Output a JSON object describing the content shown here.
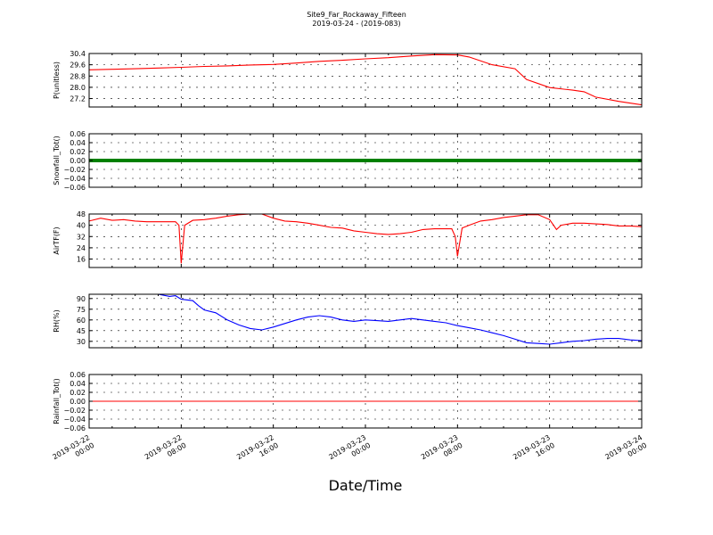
{
  "figure": {
    "title": "Site9_Far_Rockaway_Fifteen",
    "subtitle": "2019-03-24 - (2019-083)",
    "xlabel": "Date/Time"
  },
  "x_ticks": [
    {
      "line1": "2019-03-22",
      "line2": "00:00"
    },
    {
      "line1": "2019-03-22",
      "line2": "08:00"
    },
    {
      "line1": "2019-03-22",
      "line2": "16:00"
    },
    {
      "line1": "2019-03-23",
      "line2": "00:00"
    },
    {
      "line1": "2019-03-23",
      "line2": "08:00"
    },
    {
      "line1": "2019-03-23",
      "line2": "16:00"
    },
    {
      "line1": "2019-03-24",
      "line2": "00:00"
    }
  ],
  "chart_data": [
    {
      "type": "line",
      "ylabel": "P(unitless)",
      "color": "#ff0000",
      "ylim": [
        26.6,
        30.4
      ],
      "yticks": [
        27.2,
        28.0,
        28.8,
        29.6,
        30.4
      ],
      "ytick_labels": [
        "27.2",
        "28.0",
        "28.8",
        "29.6",
        "30.4"
      ],
      "grid": true,
      "series": [
        {
          "values": [
            [
              0,
              29.24
            ],
            [
              2,
              29.28
            ],
            [
              4,
              29.32
            ],
            [
              6,
              29.37
            ],
            [
              8,
              29.42
            ],
            [
              10,
              29.48
            ],
            [
              12,
              29.52
            ],
            [
              14,
              29.58
            ],
            [
              16,
              29.62
            ],
            [
              18,
              29.72
            ],
            [
              20,
              29.84
            ],
            [
              22,
              29.92
            ],
            [
              24,
              30.02
            ],
            [
              26,
              30.1
            ],
            [
              28,
              30.22
            ],
            [
              30,
              30.32
            ],
            [
              32,
              30.3
            ],
            [
              33,
              30.15
            ],
            [
              35,
              29.6
            ],
            [
              37,
              29.32
            ],
            [
              38,
              28.55
            ],
            [
              40,
              27.98
            ],
            [
              42,
              27.8
            ],
            [
              43,
              27.68
            ],
            [
              44,
              27.3
            ],
            [
              46,
              27.0
            ],
            [
              48,
              26.75
            ]
          ]
        }
      ]
    },
    {
      "type": "line",
      "ylabel": "Snowfall_Tot()",
      "color": "#008000",
      "ylim": [
        -0.06,
        0.06
      ],
      "yticks": [
        -0.06,
        -0.04,
        -0.02,
        0.0,
        0.02,
        0.04,
        0.06
      ],
      "ytick_labels": [
        "−0.06",
        "−0.04",
        "−0.02",
        "0.00",
        "0.02",
        "0.04",
        "0.06"
      ],
      "grid": true,
      "series": [
        {
          "values": [
            [
              0,
              0.0
            ],
            [
              48,
              0.0
            ]
          ]
        }
      ]
    },
    {
      "type": "line",
      "ylabel": "AirTF(F)",
      "color": "#ff0000",
      "ylim": [
        10,
        48
      ],
      "yticks": [
        16,
        24,
        32,
        40,
        48
      ],
      "ytick_labels": [
        "16",
        "24",
        "32",
        "40",
        "48"
      ],
      "grid": true,
      "series": [
        {
          "values": [
            [
              0,
              43
            ],
            [
              1,
              45
            ],
            [
              2,
              43.5
            ],
            [
              3,
              44
            ],
            [
              4,
              43
            ],
            [
              5,
              42.5
            ],
            [
              6,
              42.5
            ],
            [
              7.5,
              42.5
            ],
            [
              7.8,
              40
            ],
            [
              8,
              13
            ],
            [
              8.3,
              40
            ],
            [
              9,
              43.5
            ],
            [
              10,
              44
            ],
            [
              11,
              45
            ],
            [
              12,
              46.5
            ],
            [
              13,
              47.5
            ],
            [
              14,
              48
            ],
            [
              15,
              48
            ],
            [
              16,
              45
            ],
            [
              17,
              43
            ],
            [
              18,
              42.5
            ],
            [
              19,
              41.5
            ],
            [
              20,
              40
            ],
            [
              21,
              38.5
            ],
            [
              22,
              38
            ],
            [
              23,
              36
            ],
            [
              24,
              35
            ],
            [
              25,
              34
            ],
            [
              26,
              33.5
            ],
            [
              27,
              34
            ],
            [
              28,
              35
            ],
            [
              29,
              37
            ],
            [
              30,
              37.5
            ],
            [
              31.5,
              37.5
            ],
            [
              31.8,
              32
            ],
            [
              32,
              18
            ],
            [
              32.4,
              38
            ],
            [
              33,
              40
            ],
            [
              34,
              43
            ],
            [
              35,
              44
            ],
            [
              36,
              45.5
            ],
            [
              37,
              46.5
            ],
            [
              38,
              47.5
            ],
            [
              39,
              47.5
            ],
            [
              40,
              44
            ],
            [
              40.6,
              37
            ],
            [
              41,
              40
            ],
            [
              42,
              41.5
            ],
            [
              43,
              41.5
            ],
            [
              44,
              41
            ],
            [
              45,
              40.5
            ],
            [
              46,
              39.5
            ],
            [
              47,
              39.5
            ],
            [
              48,
              39
            ]
          ]
        }
      ]
    },
    {
      "type": "line",
      "ylabel": "RH(%)",
      "color": "#0000ff",
      "ylim": [
        21,
        96
      ],
      "yticks": [
        30,
        45,
        60,
        75,
        90
      ],
      "ytick_labels": [
        "30",
        "45",
        "60",
        "75",
        "90"
      ],
      "grid": true,
      "series": [
        {
          "values": [
            [
              5.5,
              98
            ],
            [
              6,
              96
            ],
            [
              7,
              93
            ],
            [
              7.5,
              94
            ],
            [
              8,
              89
            ],
            [
              9,
              87
            ],
            [
              9.5,
              80
            ],
            [
              10,
              74
            ],
            [
              11,
              70
            ],
            [
              12,
              60
            ],
            [
              13,
              53
            ],
            [
              14,
              48
            ],
            [
              15,
              46
            ],
            [
              16,
              50
            ],
            [
              17,
              55
            ],
            [
              18,
              60
            ],
            [
              19,
              64
            ],
            [
              20,
              66
            ],
            [
              21,
              64
            ],
            [
              22,
              60
            ],
            [
              23,
              58
            ],
            [
              24,
              60
            ],
            [
              25,
              59
            ],
            [
              26,
              58
            ],
            [
              27,
              60
            ],
            [
              28,
              62
            ],
            [
              29,
              60
            ],
            [
              30,
              58
            ],
            [
              31,
              56
            ],
            [
              32,
              52
            ],
            [
              33,
              49
            ],
            [
              34,
              46
            ],
            [
              35,
              42
            ],
            [
              36,
              38
            ],
            [
              37,
              33
            ],
            [
              38,
              28
            ],
            [
              39,
              27
            ],
            [
              40,
              26
            ],
            [
              41,
              28
            ],
            [
              42,
              30
            ],
            [
              43,
              31
            ],
            [
              44,
              33
            ],
            [
              45,
              34
            ],
            [
              46,
              34
            ],
            [
              47,
              32
            ],
            [
              48,
              31
            ]
          ]
        }
      ]
    },
    {
      "type": "line",
      "ylabel": "Rainfall_Tot()",
      "color": "#ff0000",
      "ylim": [
        -0.06,
        0.06
      ],
      "yticks": [
        -0.06,
        -0.04,
        -0.02,
        0.0,
        0.02,
        0.04,
        0.06
      ],
      "ytick_labels": [
        "−0.06",
        "−0.04",
        "−0.02",
        "0.00",
        "0.02",
        "0.04",
        "0.06"
      ],
      "grid": true,
      "series": [
        {
          "values": [
            [
              0,
              0.0
            ],
            [
              48,
              0.0
            ]
          ]
        }
      ]
    }
  ]
}
